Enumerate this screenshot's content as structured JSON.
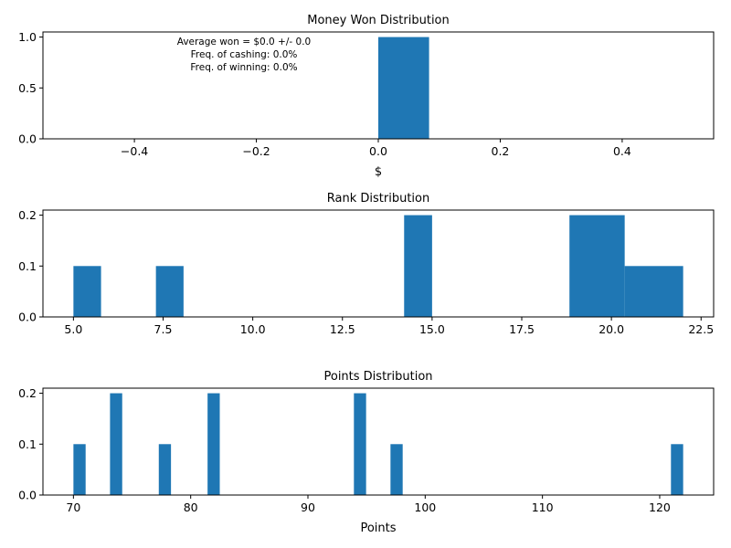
{
  "chart_data": [
    {
      "type": "bar",
      "title": "Money Won Distribution",
      "xlabel": "$",
      "ylabel": "",
      "xlim": [
        -0.55,
        0.55
      ],
      "ylim": [
        0,
        1.05
      ],
      "xticks": [
        -0.4,
        -0.2,
        0.0,
        0.2,
        0.4
      ],
      "xtick_labels": [
        "−0.4",
        "−0.2",
        "0.0",
        "0.2",
        "0.4"
      ],
      "yticks": [
        0.0,
        0.5,
        1.0
      ],
      "ytick_labels": [
        "0.0",
        "0.5",
        "1.0"
      ],
      "bars": [
        {
          "x0": 0.0,
          "x1": 0.0833,
          "height": 1.0
        }
      ],
      "annotations": [
        "Average won = $0.0 +/- 0.0",
        "Freq. of cashing: 0.0%",
        "Freq. of winning: 0.0%"
      ],
      "color": "#1f77b4"
    },
    {
      "type": "bar",
      "title": "Rank Distribution",
      "xlabel": "",
      "ylabel": "",
      "xlim": [
        4.15,
        22.85
      ],
      "ylim": [
        0,
        0.21
      ],
      "xticks": [
        5.0,
        7.5,
        10.0,
        12.5,
        15.0,
        17.5,
        20.0,
        22.5
      ],
      "xtick_labels": [
        "5.0",
        "7.5",
        "10.0",
        "12.5",
        "15.0",
        "17.5",
        "20.0",
        "22.5"
      ],
      "yticks": [
        0.0,
        0.1,
        0.2
      ],
      "ytick_labels": [
        "0.0",
        "0.1",
        "0.2"
      ],
      "bars": [
        {
          "x0": 5.0,
          "x1": 5.77,
          "height": 0.1
        },
        {
          "x0": 7.3,
          "x1": 8.07,
          "height": 0.1
        },
        {
          "x0": 14.22,
          "x1": 15.0,
          "height": 0.2
        },
        {
          "x0": 18.83,
          "x1": 20.37,
          "height": 0.2
        },
        {
          "x0": 20.37,
          "x1": 22.0,
          "height": 0.1
        }
      ],
      "color": "#1f77b4"
    },
    {
      "type": "bar",
      "title": "Points Distribution",
      "xlabel": "Points",
      "ylabel": "",
      "xlim": [
        67.4,
        124.6
      ],
      "ylim": [
        0,
        0.21
      ],
      "xticks": [
        70,
        80,
        90,
        100,
        110,
        120
      ],
      "xtick_labels": [
        "70",
        "80",
        "90",
        "100",
        "110",
        "120"
      ],
      "yticks": [
        0.0,
        0.1,
        0.2
      ],
      "ytick_labels": [
        "0.0",
        "0.1",
        "0.2"
      ],
      "bars": [
        {
          "x0": 70.0,
          "x1": 71.04,
          "height": 0.1
        },
        {
          "x0": 73.12,
          "x1": 74.16,
          "height": 0.2
        },
        {
          "x0": 77.28,
          "x1": 78.32,
          "height": 0.1
        },
        {
          "x0": 81.44,
          "x1": 82.48,
          "height": 0.2
        },
        {
          "x0": 93.92,
          "x1": 94.96,
          "height": 0.2
        },
        {
          "x0": 97.04,
          "x1": 98.08,
          "height": 0.1
        },
        {
          "x0": 120.96,
          "x1": 122.0,
          "height": 0.1
        }
      ],
      "color": "#1f77b4"
    }
  ]
}
